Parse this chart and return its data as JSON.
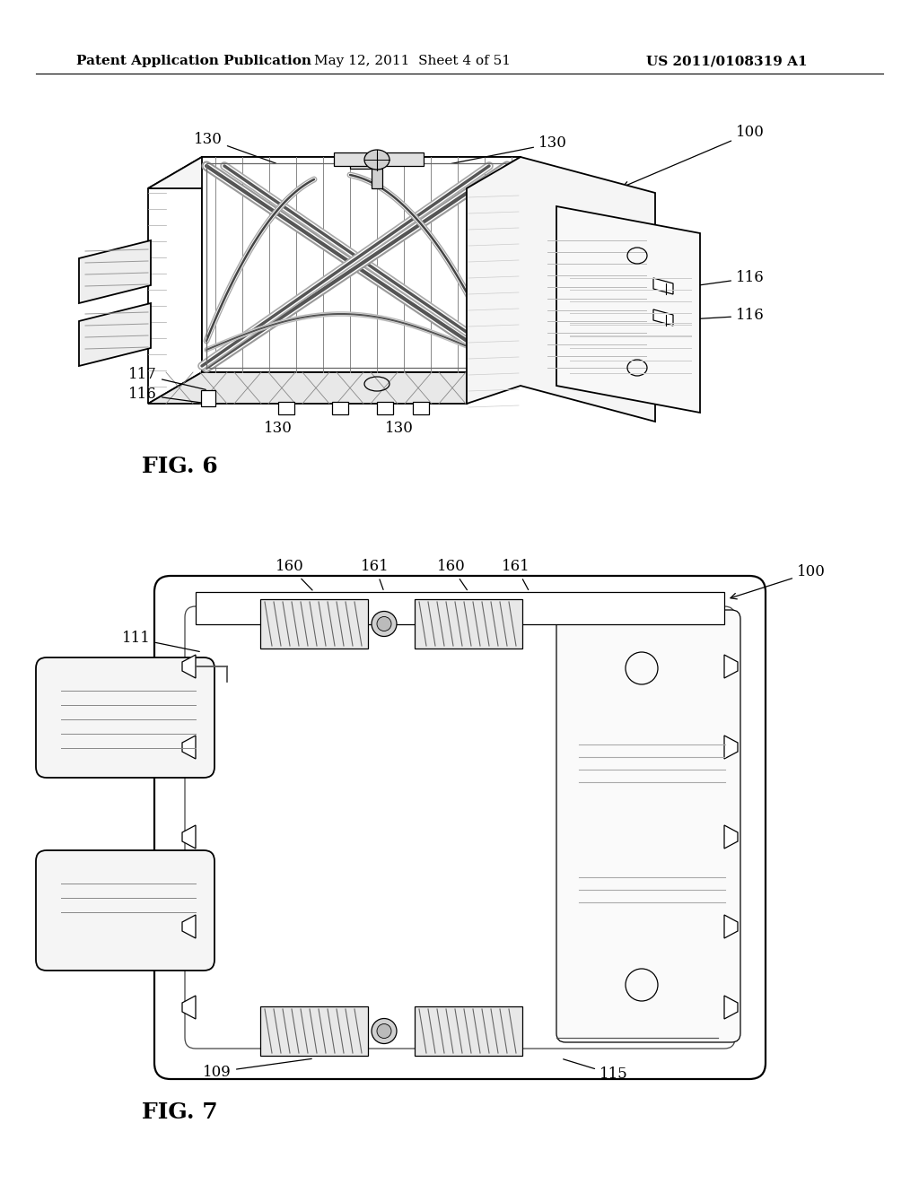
{
  "background_color": "#ffffff",
  "header_left": "Patent Application Publication",
  "header_mid": "May 12, 2011  Sheet 4 of 51",
  "header_right": "US 2011/0108319 A1",
  "fig6_label": "FIG. 6",
  "fig7_label": "FIG. 7",
  "text_color": "#000000",
  "line_color": "#000000",
  "light_gray": "#e8e8e8",
  "mid_gray": "#cccccc",
  "dark_gray": "#888888"
}
